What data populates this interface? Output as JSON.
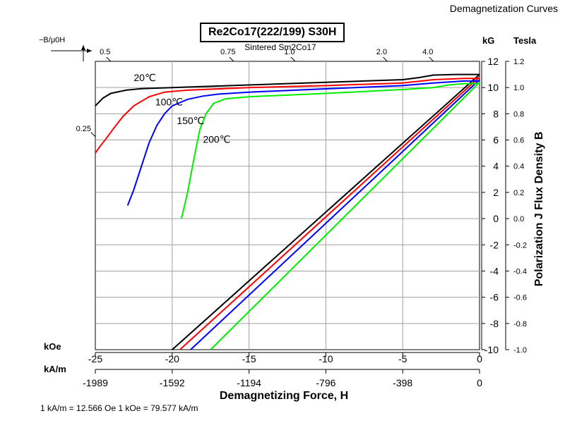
{
  "header": {
    "title": "Demagnetization Curves"
  },
  "footer": {
    "conversion_note": "1 kA/m = 12.566 Oe 1 kOe = 79.577 kA/m"
  },
  "chart_data": {
    "type": "line",
    "title": "Re2Co17(222/199) S30H",
    "subtitle": "Sintered Sm2Co17",
    "xlabel": "Demagnetizing Force, H",
    "ylabel": "Polarization J Flux Density B",
    "x_unit_primary": "kOe",
    "x_unit_secondary": "kA/m",
    "y_unit_left": "kG",
    "y_unit_right": "Tesla",
    "permeance_axis_label": "−B/μ0H",
    "xlim": [
      -25,
      0
    ],
    "ylim": [
      -10,
      12
    ],
    "grid": true,
    "x_ticks": [
      "-25",
      "-20",
      "-15",
      "-10",
      "-5",
      "0"
    ],
    "x_ticks_secondary": [
      "-1989",
      "-1592",
      "-1194",
      "-796",
      "-398",
      "0"
    ],
    "y_ticks_left": [
      "-10",
      "-8",
      "-6",
      "-4",
      "-2",
      "0",
      "2",
      "4",
      "6",
      "8",
      "10",
      "12"
    ],
    "y_ticks_right": [
      "-1.0",
      "-0.8",
      "-0.6",
      "-0.4",
      "-0.2",
      "0.0",
      "0.2",
      "0.4",
      "0.6",
      "0.8",
      "1.0",
      "1.2"
    ],
    "permeance_labels": [
      {
        "label": "0.5",
        "slope": 0.5
      },
      {
        "label": "0.75",
        "slope": 0.75
      },
      {
        "label": "1.0",
        "slope": 1.0
      },
      {
        "label": "2.0",
        "slope": 2.0
      },
      {
        "label": "4.0",
        "slope": 4.0
      },
      {
        "label": "0.25",
        "slope": 0.25
      }
    ],
    "series": [
      {
        "name": "20℃",
        "color": "#000000",
        "J": [
          [
            -25,
            8.6
          ],
          [
            -24.5,
            9.2
          ],
          [
            -24,
            9.55
          ],
          [
            -23,
            9.8
          ],
          [
            -22,
            9.92
          ],
          [
            -20,
            10.0
          ],
          [
            -15,
            10.2
          ],
          [
            -10,
            10.4
          ],
          [
            -5,
            10.6
          ],
          [
            -4,
            10.75
          ],
          [
            -3,
            10.95
          ],
          [
            -1.5,
            11.0
          ],
          [
            0,
            11.0
          ]
        ],
        "B": [
          [
            -20,
            -10
          ],
          [
            0,
            11.0
          ]
        ]
      },
      {
        "name": "100℃",
        "color": "#ff0000",
        "J": [
          [
            -25,
            5.0
          ],
          [
            -24.7,
            5.5
          ],
          [
            -24.3,
            6.1
          ],
          [
            -23.8,
            6.9
          ],
          [
            -23.2,
            7.8
          ],
          [
            -22.5,
            8.6
          ],
          [
            -21.5,
            9.3
          ],
          [
            -20.5,
            9.65
          ],
          [
            -19,
            9.8
          ],
          [
            -15,
            10.0
          ],
          [
            -10,
            10.15
          ],
          [
            -5,
            10.35
          ],
          [
            -3,
            10.6
          ],
          [
            -1,
            10.7
          ],
          [
            0,
            10.7
          ]
        ],
        "B": [
          [
            -19.5,
            -10
          ],
          [
            0,
            10.8
          ]
        ]
      },
      {
        "name": "150℃",
        "color": "#0000ff",
        "J": [
          [
            -22.9,
            1.0
          ],
          [
            -22.5,
            2.2
          ],
          [
            -22,
            4.0
          ],
          [
            -21.5,
            5.8
          ],
          [
            -21,
            7.1
          ],
          [
            -20.5,
            8.0
          ],
          [
            -20,
            8.6
          ],
          [
            -19,
            9.1
          ],
          [
            -18,
            9.35
          ],
          [
            -17,
            9.5
          ],
          [
            -15,
            9.65
          ],
          [
            -10,
            9.9
          ],
          [
            -5,
            10.15
          ],
          [
            -3,
            10.35
          ],
          [
            -1,
            10.5
          ],
          [
            0,
            10.5
          ]
        ],
        "B": [
          [
            -18.8,
            -10
          ],
          [
            0,
            10.6
          ]
        ]
      },
      {
        "name": "200℃",
        "color": "#00ee00",
        "J": [
          [
            -19.4,
            0.0
          ],
          [
            -19,
            2.0
          ],
          [
            -18.6,
            4.5
          ],
          [
            -18.2,
            6.8
          ],
          [
            -17.8,
            8.0
          ],
          [
            -17.3,
            8.8
          ],
          [
            -16.5,
            9.15
          ],
          [
            -15,
            9.3
          ],
          [
            -10,
            9.55
          ],
          [
            -5,
            9.85
          ],
          [
            -3,
            10.0
          ],
          [
            -2,
            10.2
          ],
          [
            -1,
            10.3
          ],
          [
            0,
            10.3
          ]
        ],
        "B": [
          [
            -17.5,
            -10
          ],
          [
            0,
            10.4
          ]
        ]
      }
    ],
    "curve_labels": [
      {
        "text": "20℃",
        "x": -22.5,
        "y": 10.5
      },
      {
        "text": "100℃",
        "x": -21.1,
        "y": 8.65
      },
      {
        "text": "150℃",
        "x": -19.7,
        "y": 7.2
      },
      {
        "text": "200℃",
        "x": -18.0,
        "y": 5.8
      }
    ]
  }
}
